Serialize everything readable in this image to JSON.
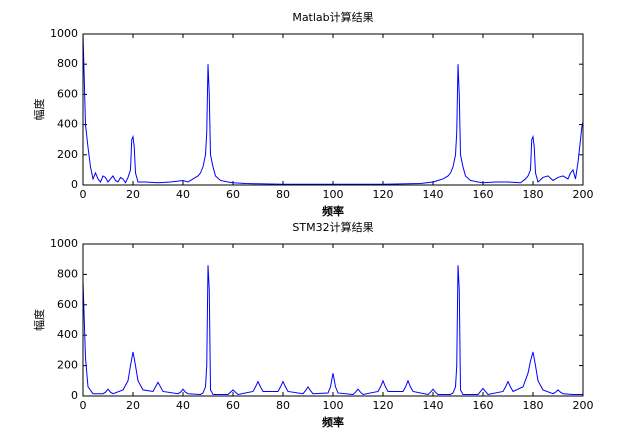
{
  "chart_data": [
    {
      "type": "line",
      "title": "Matlab计算结果",
      "xlabel": "频率",
      "ylabel": "幅度",
      "color": "#0000ff",
      "x": [
        0,
        0.5,
        1,
        2,
        3,
        4,
        5,
        6,
        7,
        8,
        9,
        10,
        11,
        12,
        13,
        14,
        15,
        16,
        17,
        18,
        19,
        19.5,
        20,
        20.5,
        21,
        22,
        25,
        30,
        35,
        40,
        42,
        44,
        46,
        47,
        48,
        49,
        49.5,
        50,
        50.5,
        51,
        52,
        53,
        55,
        58,
        60,
        65,
        70,
        80,
        90,
        100,
        110,
        120,
        130,
        135,
        140,
        142,
        144,
        146,
        147,
        148,
        149,
        149.5,
        150,
        150.5,
        151,
        152,
        153,
        155,
        158,
        160,
        165,
        170,
        175,
        177,
        178,
        179,
        179.5,
        180,
        180.5,
        181,
        182,
        184,
        186,
        188,
        190,
        192,
        194,
        195,
        196,
        197,
        198,
        199,
        199.5,
        200
      ],
      "values": [
        1000,
        700,
        400,
        250,
        120,
        40,
        80,
        40,
        20,
        60,
        50,
        20,
        40,
        60,
        30,
        20,
        50,
        40,
        15,
        50,
        100,
        300,
        320,
        250,
        80,
        20,
        20,
        15,
        20,
        30,
        20,
        40,
        60,
        80,
        120,
        200,
        350,
        800,
        600,
        200,
        120,
        60,
        30,
        20,
        15,
        10,
        8,
        5,
        5,
        5,
        5,
        5,
        8,
        10,
        20,
        30,
        40,
        60,
        80,
        120,
        200,
        350,
        800,
        600,
        200,
        120,
        60,
        30,
        20,
        15,
        20,
        20,
        15,
        40,
        60,
        100,
        300,
        320,
        250,
        80,
        20,
        50,
        60,
        30,
        50,
        60,
        40,
        80,
        100,
        40,
        150,
        300,
        380,
        420
      ],
      "xlim": [
        0,
        200
      ],
      "ylim": [
        0,
        1000
      ],
      "xticks": [
        0,
        20,
        40,
        60,
        80,
        100,
        120,
        140,
        160,
        180,
        200
      ],
      "yticks": [
        0,
        200,
        400,
        600,
        800,
        1000
      ]
    },
    {
      "type": "line",
      "title": "STM32计算结果",
      "xlabel": "频率",
      "ylabel": "幅度",
      "color": "#0000ff",
      "x": [
        0,
        0.5,
        1,
        2,
        4,
        8,
        9,
        10,
        11,
        12,
        16,
        18,
        19,
        20,
        21,
        22,
        24,
        28,
        29,
        30,
        31,
        32,
        38,
        39,
        40,
        41,
        42,
        47,
        48,
        49,
        49.5,
        50,
        50.5,
        51,
        52,
        58,
        59,
        60,
        61,
        62,
        68,
        69,
        70,
        71,
        72,
        78,
        79,
        80,
        81,
        82,
        88,
        89,
        90,
        91,
        92,
        98,
        99,
        100,
        101,
        102,
        108,
        109,
        110,
        111,
        112,
        118,
        119,
        120,
        121,
        122,
        128,
        129,
        130,
        131,
        132,
        138,
        139,
        140,
        141,
        142,
        147,
        148,
        149,
        149.5,
        150,
        150.5,
        151,
        152,
        158,
        159,
        160,
        161,
        162,
        168,
        169,
        170,
        171,
        172,
        176,
        178,
        179,
        180,
        181,
        182,
        184,
        188,
        189,
        190,
        191,
        192,
        196,
        200
      ],
      "values": [
        760,
        500,
        250,
        60,
        15,
        15,
        25,
        45,
        25,
        15,
        40,
        100,
        200,
        290,
        200,
        100,
        40,
        30,
        60,
        90,
        60,
        30,
        15,
        25,
        45,
        25,
        15,
        10,
        20,
        60,
        200,
        860,
        700,
        40,
        10,
        10,
        25,
        40,
        25,
        10,
        30,
        60,
        95,
        60,
        30,
        30,
        60,
        95,
        60,
        30,
        15,
        35,
        60,
        35,
        15,
        20,
        60,
        150,
        60,
        20,
        10,
        25,
        45,
        25,
        10,
        30,
        60,
        100,
        60,
        30,
        30,
        60,
        100,
        60,
        30,
        10,
        25,
        45,
        25,
        10,
        10,
        20,
        60,
        200,
        860,
        700,
        40,
        10,
        10,
        30,
        50,
        30,
        10,
        30,
        60,
        95,
        60,
        30,
        60,
        150,
        230,
        290,
        200,
        100,
        40,
        15,
        25,
        40,
        25,
        15,
        10,
        10
      ],
      "xlim": [
        0,
        200
      ],
      "ylim": [
        0,
        1000
      ],
      "xticks": [
        0,
        20,
        40,
        60,
        80,
        100,
        120,
        140,
        160,
        180,
        200
      ],
      "yticks": [
        0,
        200,
        400,
        600,
        800,
        1000
      ]
    }
  ]
}
